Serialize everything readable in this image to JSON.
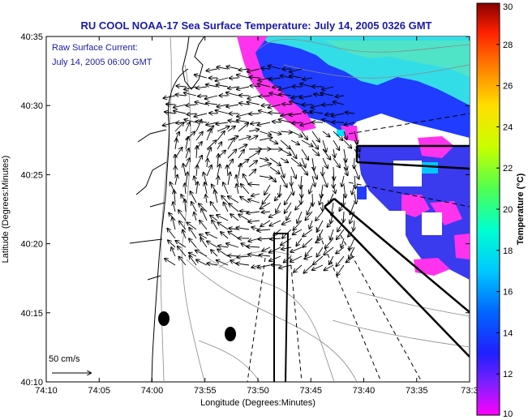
{
  "title": "RU COOL  NOAA-17  Sea Surface Temperature:  July 14, 2005 0326 GMT",
  "current_label": "Raw Surface Current:",
  "current_time": "July 14, 2005 06:00 GMT",
  "scale_label": "50 cm/s",
  "colors": {
    "title": "#1a1aa6",
    "land": "#ffffff",
    "sst_warm": "#33e8e8",
    "sst_mid": "#3355ff",
    "sst_cold": "#ff33ee"
  },
  "chart_data": {
    "type": "map",
    "xlabel": "Longitude (Degrees:Minutes)",
    "ylabel": "Latitude (Degrees:Minutes)",
    "x_ticks": [
      "74:10",
      "74:05",
      "74:00",
      "73:55",
      "73:50",
      "73:45",
      "73:40",
      "73:35",
      "73:3"
    ],
    "y_ticks": [
      "40:35",
      "40:30",
      "40:25",
      "40:20",
      "40:15",
      "40:10"
    ],
    "colorbar": {
      "label": "Temperature (°C)",
      "range": [
        10,
        30
      ],
      "ticks": [
        "30",
        "28",
        "26",
        "24",
        "22",
        "20",
        "18",
        "16",
        "14",
        "12",
        "10"
      ]
    }
  }
}
